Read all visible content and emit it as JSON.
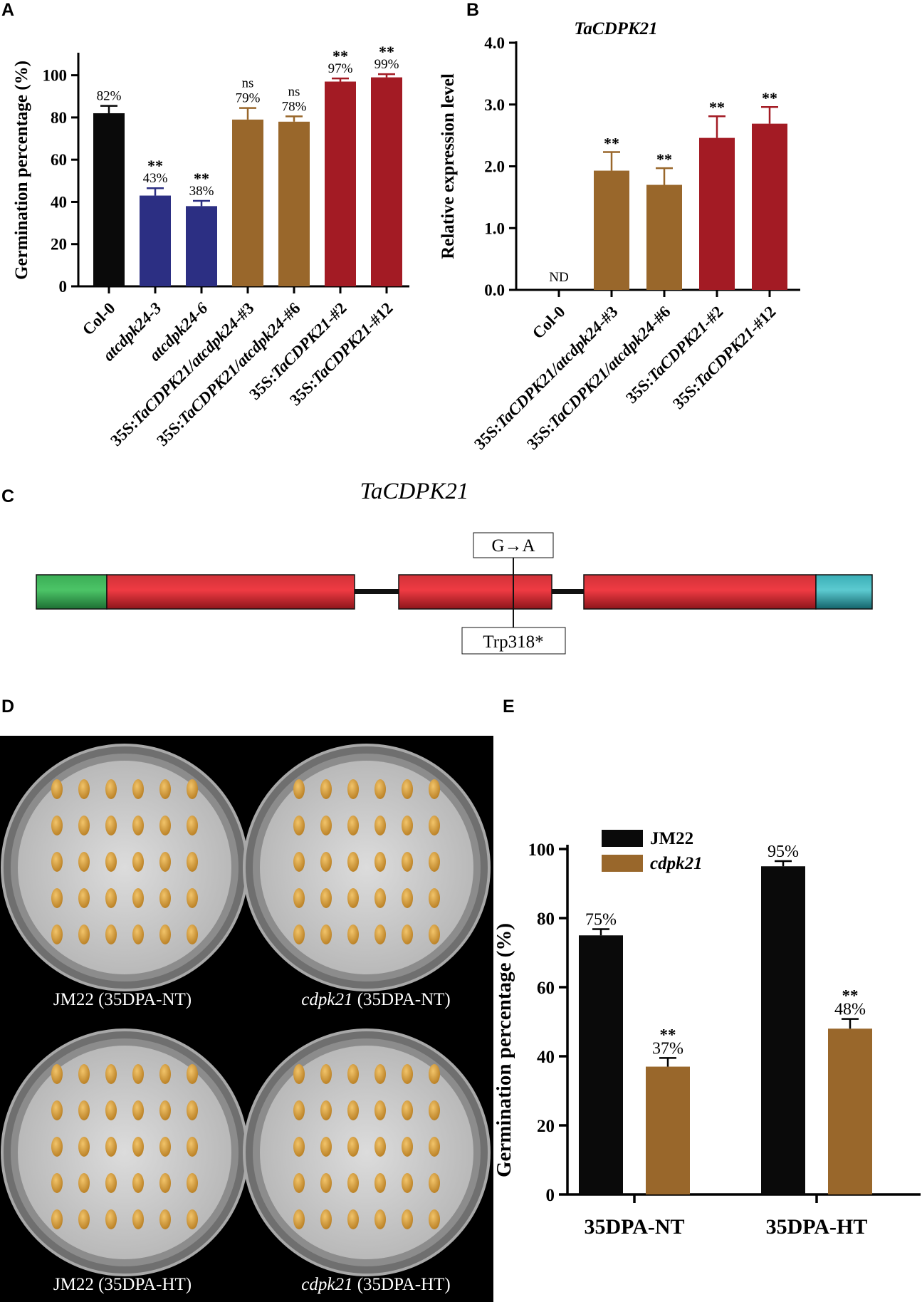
{
  "panels": {
    "A": "A",
    "B": "B",
    "C": "C",
    "D": "D",
    "E": "E"
  },
  "colors": {
    "black": "#0a0a0a",
    "blue": "#2c2f83",
    "brown": "#99672b",
    "red": "#a31b24",
    "green": "#2aa14a",
    "teal": "#1f9aa5"
  },
  "chart_data": [
    {
      "type": "bar",
      "panel": "A",
      "ylabel": "Germination percentage (%)",
      "ylim": [
        0,
        110
      ],
      "yticks": [
        "0",
        "20",
        "40",
        "60",
        "80",
        "100"
      ],
      "categories": [
        "Col-0",
        "atcdpk24-3",
        "atcdpk24-6",
        "35S:TaCDPK21/atcdpk24-#3",
        "35S:TaCDPK21/atcdpk24-#6",
        "35S:TaCDPK21-#2",
        "35S:TaCDPK21-#12"
      ],
      "values": [
        82,
        43,
        38,
        79,
        78,
        97,
        99
      ],
      "errors": [
        3.5,
        3.5,
        2.5,
        5.5,
        2.5,
        1.5,
        1.5
      ],
      "value_labels": [
        "82%",
        "43%",
        "38%",
        "79%",
        "78%",
        "97%",
        "99%"
      ],
      "significance": [
        "",
        "**",
        "**",
        "ns",
        "ns",
        "**",
        "**"
      ],
      "bar_colors": [
        "#0a0a0a",
        "#2c2f83",
        "#2c2f83",
        "#99672b",
        "#99672b",
        "#a31b24",
        "#a31b24"
      ]
    },
    {
      "type": "bar",
      "panel": "B",
      "title": "TaCDPK21",
      "ylabel": "Relative expression level",
      "ylim": [
        0,
        4
      ],
      "yticks": [
        "0.0",
        "1.0",
        "2.0",
        "3.0",
        "4.0"
      ],
      "categories": [
        "Col-0",
        "35S:TaCDPK21/atcdpk24-#3",
        "35S:TaCDPK21/atcdpk24-#6",
        "35S:TaCDPK21-#2",
        "35S:TaCDPK21-#12"
      ],
      "values": [
        0,
        1.93,
        1.7,
        2.46,
        2.69
      ],
      "errors": [
        0,
        0.3,
        0.27,
        0.35,
        0.27
      ],
      "value_labels": [
        "ND",
        "",
        "",
        "",
        ""
      ],
      "significance": [
        "",
        "**",
        "**",
        "**",
        "**"
      ],
      "bar_colors": [
        "#0a0a0a",
        "#99672b",
        "#99672b",
        "#a31b24",
        "#a31b24"
      ]
    },
    {
      "type": "bar",
      "panel": "E",
      "ylabel": "Germination percentage (%)",
      "ylim": [
        0,
        100
      ],
      "yticks": [
        "0",
        "20",
        "40",
        "60",
        "80",
        "100"
      ],
      "categories": [
        "35DPA-NT",
        "35DPA-HT"
      ],
      "series": [
        {
          "name": "JM22",
          "values": [
            75,
            95
          ],
          "errors": [
            1.8,
            1.5
          ],
          "labels": [
            "75%",
            "95%"
          ],
          "significance": [
            "",
            ""
          ],
          "color": "#0a0a0a"
        },
        {
          "name": "cdpk21",
          "values": [
            37,
            48
          ],
          "errors": [
            2.5,
            2.8
          ],
          "labels": [
            "37%",
            "48%"
          ],
          "significance": [
            "**",
            "**"
          ],
          "color": "#99672b"
        }
      ],
      "legend": "top-left"
    }
  ],
  "gene_diagram": {
    "title": "TaCDPK21",
    "mutation": "G→A",
    "protein_change": "Trp318*"
  },
  "photo": {
    "labels": [
      {
        "plain": "JM22 (35DPA-NT)",
        "italic": ""
      },
      {
        "plain": " (35DPA-NT)",
        "italic": "cdpk21"
      },
      {
        "plain": "JM22 (35DPA-HT)",
        "italic": ""
      },
      {
        "plain": " (35DPA-HT)",
        "italic": "cdpk21"
      }
    ]
  }
}
